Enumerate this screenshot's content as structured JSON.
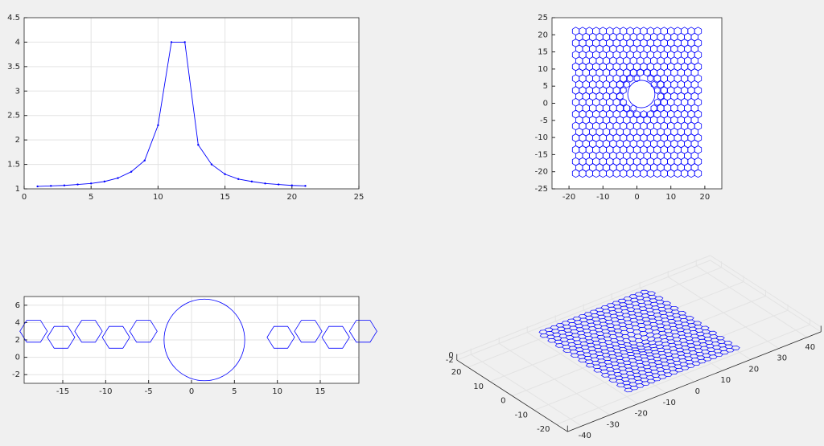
{
  "chart_data": [
    {
      "type": "line",
      "color": "#0000ff",
      "grid": true,
      "x": [
        1,
        2,
        3,
        4,
        5,
        6,
        7,
        8,
        9,
        10,
        11,
        12,
        13,
        14,
        15,
        16,
        17,
        18,
        19,
        20,
        21
      ],
      "values": [
        1.05,
        1.06,
        1.07,
        1.09,
        1.11,
        1.15,
        1.22,
        1.35,
        1.58,
        2.3,
        4,
        4,
        1.9,
        1.5,
        1.3,
        1.2,
        1.15,
        1.11,
        1.09,
        1.07,
        1.06
      ],
      "xlim": [
        0,
        25
      ],
      "xticks": [
        0,
        5,
        10,
        15,
        20,
        25
      ],
      "ylim": [
        1,
        4.5
      ],
      "yticks": [
        1,
        1.5,
        2,
        2.5,
        3,
        3.5,
        4,
        4.5
      ]
    },
    {
      "type": "mesh",
      "color": "#0000ff",
      "grid": false,
      "xlim": [
        -25,
        25
      ],
      "xticks": [
        -20,
        -10,
        0,
        10,
        20
      ],
      "ylim": [
        -25,
        25
      ],
      "yticks": [
        -25,
        -20,
        -15,
        -10,
        -5,
        0,
        5,
        10,
        15,
        20,
        25
      ]
    },
    {
      "type": "mesh",
      "color": "#0000ff",
      "grid": true,
      "xlim": [
        -19.5,
        19.5
      ],
      "xticks": [
        -15,
        -10,
        -5,
        0,
        5,
        10,
        15
      ],
      "ylim": [
        -3,
        7
      ],
      "yticks": [
        -2,
        0,
        2,
        4,
        6
      ]
    },
    {
      "type": "mesh3d",
      "color": "#0000ff",
      "grid": true,
      "xlim": [
        -45,
        45
      ],
      "xticks": [
        -40,
        -30,
        -20,
        -10,
        0,
        10,
        20,
        30,
        40
      ],
      "ylim": [
        -25,
        25
      ],
      "yticks": [
        -20,
        -10,
        0,
        10,
        20
      ],
      "zlim": [
        -2,
        0.5
      ],
      "zticks": [
        -2,
        0
      ]
    }
  ]
}
